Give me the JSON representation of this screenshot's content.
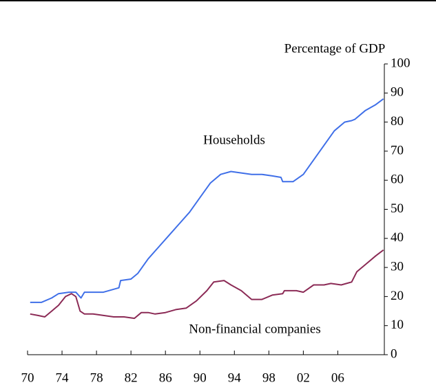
{
  "chart_data": {
    "type": "line",
    "y_label": "Percentage of GDP",
    "xlim": [
      1970,
      2011.4
    ],
    "ylim": [
      0,
      100
    ],
    "xticks": [
      {
        "value": 1970,
        "label": "70"
      },
      {
        "value": 1974,
        "label": "74"
      },
      {
        "value": 1978,
        "label": "78"
      },
      {
        "value": 1982,
        "label": "82"
      },
      {
        "value": 1986,
        "label": "86"
      },
      {
        "value": 1990,
        "label": "90"
      },
      {
        "value": 1994,
        "label": "94"
      },
      {
        "value": 1998,
        "label": "98"
      },
      {
        "value": 2002,
        "label": "02"
      },
      {
        "value": 2006,
        "label": "06"
      }
    ],
    "yticks": [
      0,
      10,
      20,
      30,
      40,
      50,
      60,
      70,
      80,
      90,
      100
    ],
    "series": [
      {
        "name": "Households",
        "color": "#3f6fe8",
        "x": [
          1970.3,
          1971.6,
          1972.8,
          1973.6,
          1974.8,
          1975.6,
          1976.2,
          1976.6,
          1978.8,
          1980,
          1980.6,
          1980.8,
          1982,
          1982.8,
          1984,
          1985.2,
          1986.4,
          1987.6,
          1988.8,
          1990,
          1991.2,
          1992.4,
          1993.6,
          1994.8,
          1996,
          1997.2,
          1998.4,
          1999.4,
          1999.6,
          2000.8,
          2002,
          2003.2,
          2004.4,
          2005.6,
          2006.8,
          2007.6,
          2008,
          2009.2,
          2010.4,
          2011.3
        ],
        "values": [
          18,
          18,
          19.5,
          21,
          21.5,
          21.5,
          19.5,
          21.5,
          21.5,
          22.5,
          23,
          25.5,
          26,
          28,
          33,
          37,
          41,
          45,
          49,
          54,
          59,
          62,
          63,
          62.5,
          62,
          62,
          61.5,
          61,
          59.5,
          59.5,
          62,
          67,
          72,
          77,
          80,
          80.5,
          81,
          84,
          86,
          88
        ]
      },
      {
        "name": "Non-financial companies",
        "color": "#8b2a55",
        "x": [
          1970.3,
          1971.2,
          1972,
          1972.8,
          1973.6,
          1974.4,
          1975.1,
          1975.6,
          1976.1,
          1976.6,
          1977.6,
          1978.8,
          1980,
          1981.2,
          1982.4,
          1983.2,
          1984,
          1984.8,
          1986,
          1987.2,
          1988.4,
          1989.6,
          1990.8,
          1991.6,
          1992.8,
          1993.6,
          1994.8,
          1996,
          1997.2,
          1998.4,
          1999.6,
          1999.8,
          2001.2,
          2002,
          2003.2,
          2004.4,
          2005.2,
          2006.4,
          2007.6,
          2008.2,
          2009.2,
          2010.4,
          2011.3
        ],
        "values": [
          14,
          13.5,
          13,
          15,
          17,
          20,
          21,
          20,
          15,
          14,
          14,
          13.5,
          13,
          13,
          12.5,
          14.5,
          14.5,
          14,
          14.5,
          15.5,
          16,
          18.5,
          22,
          25,
          25.5,
          24,
          22,
          19,
          19,
          20.5,
          21,
          22,
          22,
          21.5,
          24,
          24,
          24.5,
          24,
          25,
          28.5,
          31,
          34,
          36
        ]
      }
    ]
  }
}
